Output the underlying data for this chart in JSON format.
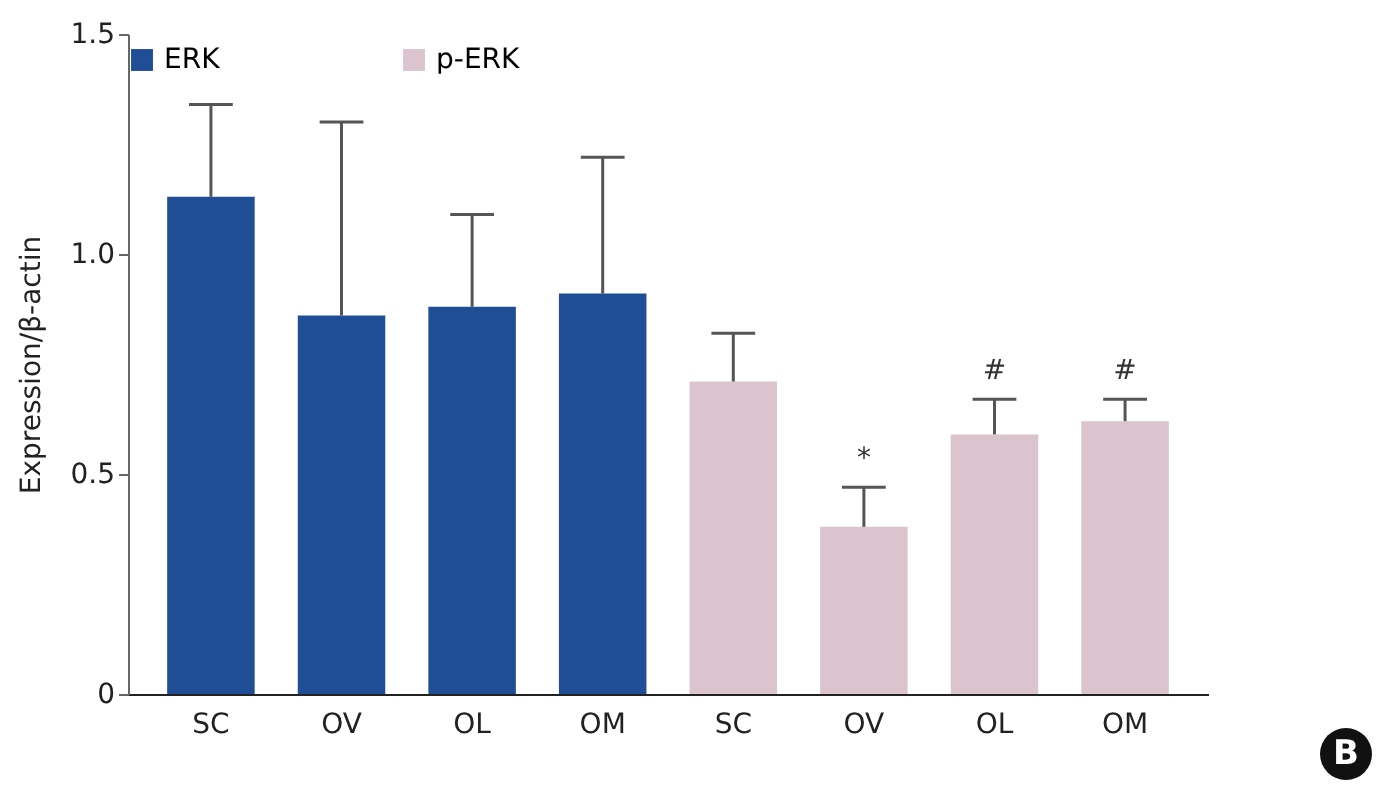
{
  "chart_data": {
    "type": "bar",
    "ylabel": "Expression/β-actin",
    "categories": [
      "SC",
      "OV",
      "OL",
      "OM",
      "SC",
      "OV",
      "OL",
      "OM"
    ],
    "series": [
      {
        "name": "ERK",
        "color": "#1f4e96",
        "values": [
          1.13,
          0.86,
          0.88,
          0.91,
          null,
          null,
          null,
          null
        ],
        "errors": [
          [
            1.13,
            1.34
          ],
          [
            0.86,
            1.3
          ],
          [
            0.88,
            1.09
          ],
          [
            0.91,
            1.22
          ],
          null,
          null,
          null,
          null
        ]
      },
      {
        "name": "p-ERK",
        "color": "#dcc4ce",
        "values": [
          null,
          null,
          null,
          null,
          0.71,
          0.38,
          0.59,
          0.62
        ],
        "errors": [
          null,
          null,
          null,
          null,
          [
            0.71,
            0.82
          ],
          [
            0.38,
            0.47
          ],
          [
            0.59,
            0.67
          ],
          [
            0.62,
            0.67
          ]
        ]
      }
    ],
    "ylim": [
      0,
      1.5
    ],
    "yticks": [
      0,
      0.5,
      {
        "value": 1,
        "label": "1.0"
      },
      {
        "value": 1.5,
        "label": "1.5"
      }
    ],
    "legend": "top",
    "grid": false,
    "annotations": [
      "*",
      "#",
      "#",
      "B"
    ]
  }
}
